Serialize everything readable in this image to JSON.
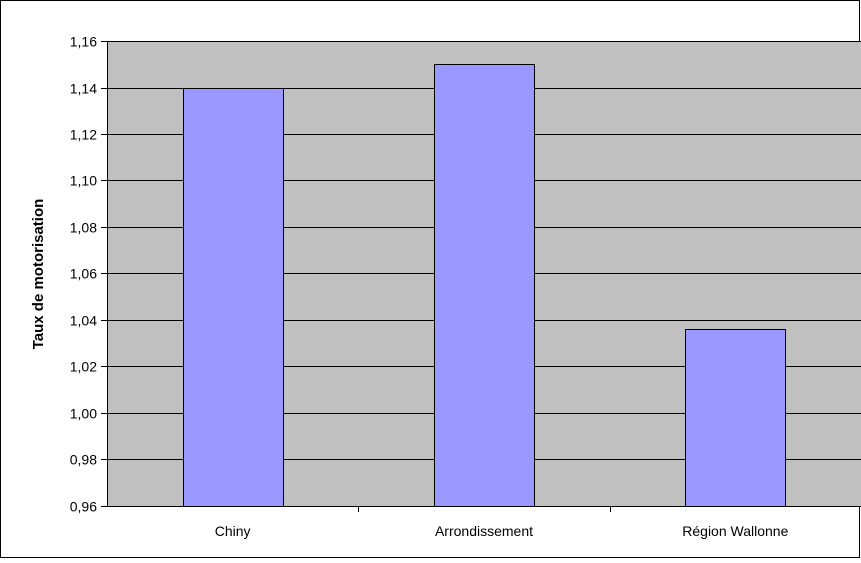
{
  "chart_data": {
    "type": "bar",
    "title": "",
    "xlabel": "",
    "ylabel": "Taux de motorisation",
    "categories": [
      "Chiny",
      "Arrondissement",
      "Région Wallonne"
    ],
    "values": [
      1.14,
      1.15,
      1.036
    ],
    "ylim": [
      0.96,
      1.16
    ],
    "yticks": [
      0.96,
      0.98,
      1.0,
      1.02,
      1.04,
      1.06,
      1.08,
      1.1,
      1.12,
      1.14,
      1.16
    ],
    "ytick_labels": [
      "0,96",
      "0,98",
      "1,00",
      "1,02",
      "1,04",
      "1,06",
      "1,08",
      "1,10",
      "1,12",
      "1,14",
      "1,16"
    ],
    "grid": true,
    "legend": "none",
    "colors": {
      "plot_background": "#c0c0c0",
      "bar_fill": "#9999ff",
      "bar_stroke": "#000000",
      "gridline": "#000000",
      "frame": "#000000"
    }
  }
}
